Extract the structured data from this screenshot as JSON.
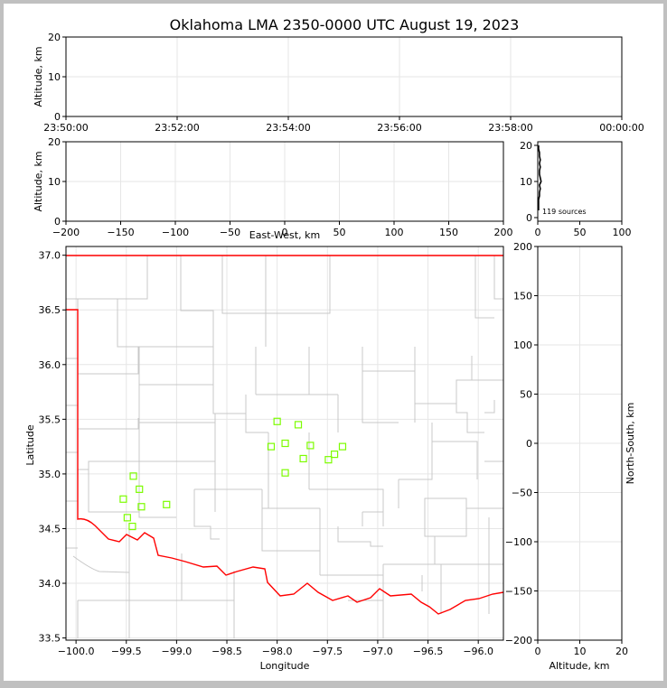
{
  "title": "Oklahoma LMA 2350-0000 UTC August 19, 2023",
  "source_count_label": "119 sources",
  "colors": {
    "frame": "#c0c0c0",
    "panel_bg": "#ffffff",
    "grid": "#e6e6e6",
    "county_lines": "#c8c8c8",
    "state_border": "#ff0000",
    "source_marker": "#7cfc00",
    "histogram": "#000000"
  },
  "chart_data": [
    {
      "id": "time-altitude",
      "type": "scatter",
      "xlabel": "",
      "ylabel": "Altitude, km",
      "x_ticks": [
        "23:50:00",
        "23:52:00",
        "23:54:00",
        "23:56:00",
        "23:58:00",
        "00:00:00"
      ],
      "ylim": [
        0,
        20
      ],
      "y_ticks": [
        0,
        10,
        20
      ],
      "grid": true,
      "points": []
    },
    {
      "id": "east-west-altitude",
      "type": "scatter",
      "xlabel": "East-West, km",
      "ylabel": "Altitude, km",
      "xlim": [
        -200,
        200
      ],
      "x_ticks": [
        -200,
        -150,
        -100,
        -50,
        0,
        50,
        100,
        150,
        200
      ],
      "ylim": [
        0,
        20
      ],
      "y_ticks": [
        0,
        10,
        20
      ],
      "grid": true,
      "points": []
    },
    {
      "id": "altitude-histogram",
      "type": "line",
      "xlim": [
        0,
        100
      ],
      "x_ticks": [
        0,
        50,
        100
      ],
      "ylim": [
        -1,
        21
      ],
      "y_ticks": [
        0,
        10,
        20
      ],
      "altitudes": [
        2,
        5,
        6,
        7,
        8,
        9,
        10,
        11,
        12,
        13,
        14,
        15,
        16,
        17,
        18,
        19,
        20
      ],
      "counts": [
        1,
        1,
        2,
        2,
        3,
        2,
        4,
        3,
        2,
        2,
        3,
        2,
        3,
        2,
        2,
        1,
        1
      ]
    },
    {
      "id": "plan-view",
      "type": "scatter",
      "xlabel": "Longitude",
      "ylabel": "Latitude",
      "xlim": [
        -100.1,
        -95.75
      ],
      "ylim": [
        33.48,
        37.08
      ],
      "x_ticks": [
        -100.0,
        -99.5,
        -99.0,
        -98.5,
        -98.0,
        -97.5,
        -97.0,
        -96.5,
        -96.0
      ],
      "x_tick_labels": [
        "−100.0",
        "−99.5",
        "−99.0",
        "−98.5",
        "−98.0",
        "−97.5",
        "−97.0",
        "−96.5",
        "−96.0"
      ],
      "y_ticks": [
        33.5,
        34.0,
        34.5,
        35.0,
        35.5,
        36.0,
        36.5,
        37.0
      ],
      "y_tick_labels": [
        "33.5",
        "34.0",
        "34.5",
        "35.0",
        "35.5",
        "36.0",
        "36.5",
        "37.0"
      ],
      "grid": true,
      "points": [
        {
          "lon": -98.0,
          "lat": 35.48
        },
        {
          "lon": -97.79,
          "lat": 35.45
        },
        {
          "lon": -98.06,
          "lat": 35.25
        },
        {
          "lon": -97.92,
          "lat": 35.28
        },
        {
          "lon": -97.67,
          "lat": 35.26
        },
        {
          "lon": -97.74,
          "lat": 35.14
        },
        {
          "lon": -97.92,
          "lat": 35.01
        },
        {
          "lon": -97.49,
          "lat": 35.13
        },
        {
          "lon": -97.43,
          "lat": 35.18
        },
        {
          "lon": -97.35,
          "lat": 35.25
        },
        {
          "lon": -99.43,
          "lat": 34.98
        },
        {
          "lon": -99.37,
          "lat": 34.86
        },
        {
          "lon": -99.53,
          "lat": 34.77
        },
        {
          "lon": -99.1,
          "lat": 34.72
        },
        {
          "lon": -99.35,
          "lat": 34.7
        },
        {
          "lon": -99.49,
          "lat": 34.6
        },
        {
          "lon": -99.44,
          "lat": 34.52
        }
      ]
    },
    {
      "id": "north-south-altitude",
      "type": "scatter",
      "xlabel": "Altitude, km",
      "ylabel": "North-South, km",
      "xlim": [
        0,
        20
      ],
      "x_ticks": [
        0,
        10,
        20
      ],
      "ylim": [
        -200,
        200
      ],
      "y_ticks": [
        -200,
        -150,
        -100,
        -50,
        0,
        50,
        100,
        150,
        200
      ],
      "y_tick_labels": [
        "−200",
        "−150",
        "−100",
        "−50",
        "0",
        "50",
        "100",
        "150",
        "200"
      ],
      "grid": true,
      "points": []
    }
  ]
}
